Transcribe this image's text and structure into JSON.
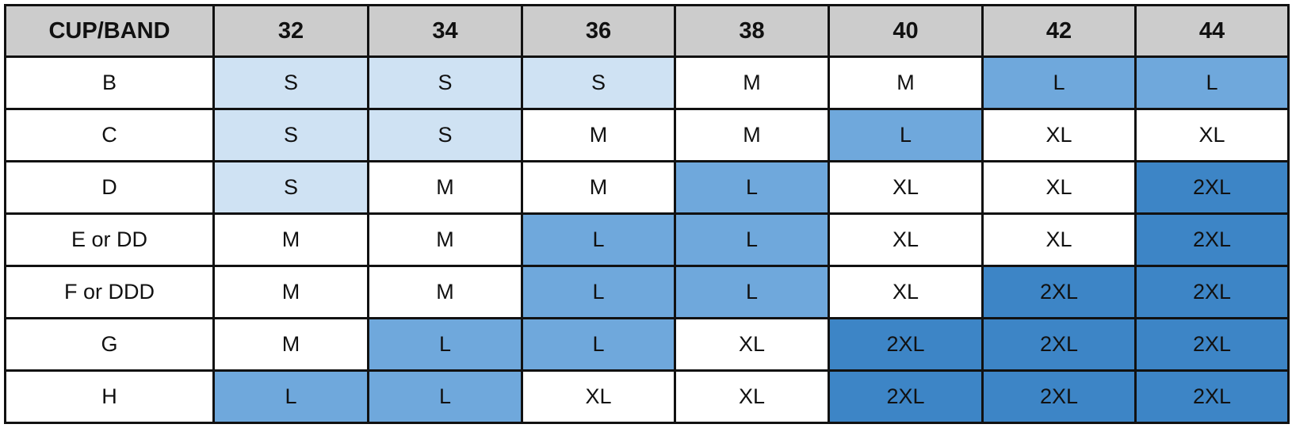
{
  "table": {
    "corner_header": "CUP/BAND",
    "bands": [
      "32",
      "34",
      "36",
      "38",
      "40",
      "42",
      "44"
    ],
    "rows": [
      {
        "cup": "B",
        "sizes": [
          "S",
          "S",
          "S",
          "M",
          "M",
          "L",
          "L"
        ]
      },
      {
        "cup": "C",
        "sizes": [
          "S",
          "S",
          "M",
          "M",
          "L",
          "XL",
          "XL"
        ]
      },
      {
        "cup": "D",
        "sizes": [
          "S",
          "M",
          "M",
          "L",
          "XL",
          "XL",
          "2XL"
        ]
      },
      {
        "cup": "E or DD",
        "sizes": [
          "M",
          "M",
          "L",
          "L",
          "XL",
          "XL",
          "2XL"
        ]
      },
      {
        "cup": "F or DDD",
        "sizes": [
          "M",
          "M",
          "L",
          "L",
          "XL",
          "2XL",
          "2XL"
        ]
      },
      {
        "cup": "G",
        "sizes": [
          "M",
          "L",
          "L",
          "XL",
          "2XL",
          "2XL",
          "2XL"
        ]
      },
      {
        "cup": "H",
        "sizes": [
          "L",
          "L",
          "XL",
          "XL",
          "2XL",
          "2XL",
          "2XL"
        ]
      }
    ],
    "highlight_levels": [
      [
        1,
        1,
        1,
        0,
        0,
        2,
        2
      ],
      [
        1,
        1,
        0,
        0,
        2,
        0,
        0
      ],
      [
        1,
        0,
        0,
        2,
        0,
        0,
        3
      ],
      [
        0,
        0,
        2,
        2,
        0,
        0,
        3
      ],
      [
        0,
        0,
        2,
        2,
        0,
        3,
        3
      ],
      [
        0,
        2,
        2,
        0,
        3,
        3,
        3
      ],
      [
        2,
        2,
        0,
        0,
        3,
        3,
        3
      ]
    ],
    "colors": {
      "header": "#cccccc",
      "light": "#cfe2f3",
      "medium": "#6fa8dc",
      "dark": "#3d85c6",
      "plain": "#ffffff"
    }
  }
}
